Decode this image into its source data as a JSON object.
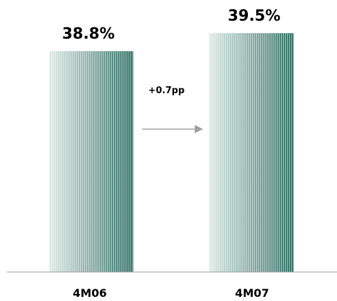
{
  "chart_data": {
    "type": "bar",
    "categories": [
      "4M06",
      "4M07"
    ],
    "values": [
      38.8,
      39.5
    ],
    "value_labels": [
      "38.8%",
      "39.5%"
    ],
    "title": "",
    "xlabel": "",
    "ylabel": "",
    "annotation": "+0.7pp",
    "colors": {
      "bar_light": "#dfeae7",
      "bar_dark": "#2f6e62",
      "axis": "#999999",
      "arrow": "#a0a0a0"
    }
  }
}
